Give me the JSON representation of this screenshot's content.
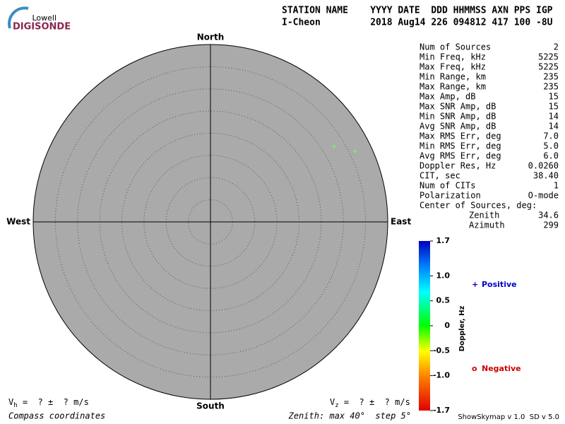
{
  "header": {
    "logo_top": "Lowell",
    "logo_bottom": "DIGISONDE",
    "line1": "STATION NAME    YYYY DATE  DDD HHMMSS AXN PPS IGP",
    "line2": "I-Cheon         2018 Aug14 226 094812 417 100 -8U"
  },
  "stats": {
    "rows": [
      [
        "Num of Sources",
        "2"
      ],
      [
        "Min Freq, kHz",
        "5225"
      ],
      [
        "Max Freq, kHz",
        "5225"
      ],
      [
        "Min Range, km",
        "235"
      ],
      [
        "Max Range, km",
        "235"
      ],
      [
        "Max Amp, dB",
        "15"
      ],
      [
        "Max SNR Amp, dB",
        "15"
      ],
      [
        "Min SNR Amp, dB",
        "14"
      ],
      [
        "Avg SNR Amp, dB",
        "14"
      ],
      [
        "Max RMS Err, deg",
        "7.0"
      ],
      [
        "Min RMS Err, deg",
        "5.0"
      ],
      [
        "Avg RMS Err, deg",
        "6.0"
      ],
      [
        "Doppler Res, Hz",
        "0.0260"
      ],
      [
        "CIT, sec",
        "38.40"
      ],
      [
        "Num of CITs",
        "1"
      ],
      [
        "Polarization",
        "O-mode"
      ]
    ],
    "center_title": "Center of Sources, deg:",
    "center_rows": [
      [
        "Zenith",
        "34.6"
      ],
      [
        "Azimuth",
        "299"
      ]
    ]
  },
  "chart_data": {
    "type": "polar",
    "directions": {
      "north": "North",
      "south": "South",
      "east": "East",
      "west": "West"
    },
    "rlim": [
      0,
      40
    ],
    "rticks": [
      5,
      10,
      15,
      20,
      25,
      30,
      35,
      40
    ],
    "series": [
      {
        "name": "Positive",
        "symbol": "+",
        "color": "#0000cc",
        "point_color": "#66ff66",
        "zenith": [
          32.7,
          36.3
        ],
        "azimuth": [
          58.6,
          64.0
        ]
      },
      {
        "name": "Negative",
        "symbol": "o",
        "color": "#cc0000",
        "point_color": "#66ff66",
        "zenith": [],
        "azimuth": []
      }
    ],
    "colorbar": {
      "label": "Doppler, Hz",
      "lim": [
        -1.7,
        1.7
      ],
      "ticks": [
        1.7,
        {
          "value": 1.0,
          "label": "1.0"
        },
        0.5,
        0,
        -0.5,
        {
          "value": -1.0,
          "label": "-1.0"
        },
        -1.7
      ]
    }
  },
  "footer": {
    "vh_v": "V",
    "vh_sub": "h",
    "vh_rest": " =  ? ±  ? m/s",
    "vz_v": "V",
    "vz_sub": "z",
    "vz_rest": " =  ? ±  ? m/s",
    "compass": "Compass coordinates",
    "zenith_note": "Zenith: max 40°  step 5°",
    "version": "ShowSkymap v 1.0  SD v 5.0"
  }
}
